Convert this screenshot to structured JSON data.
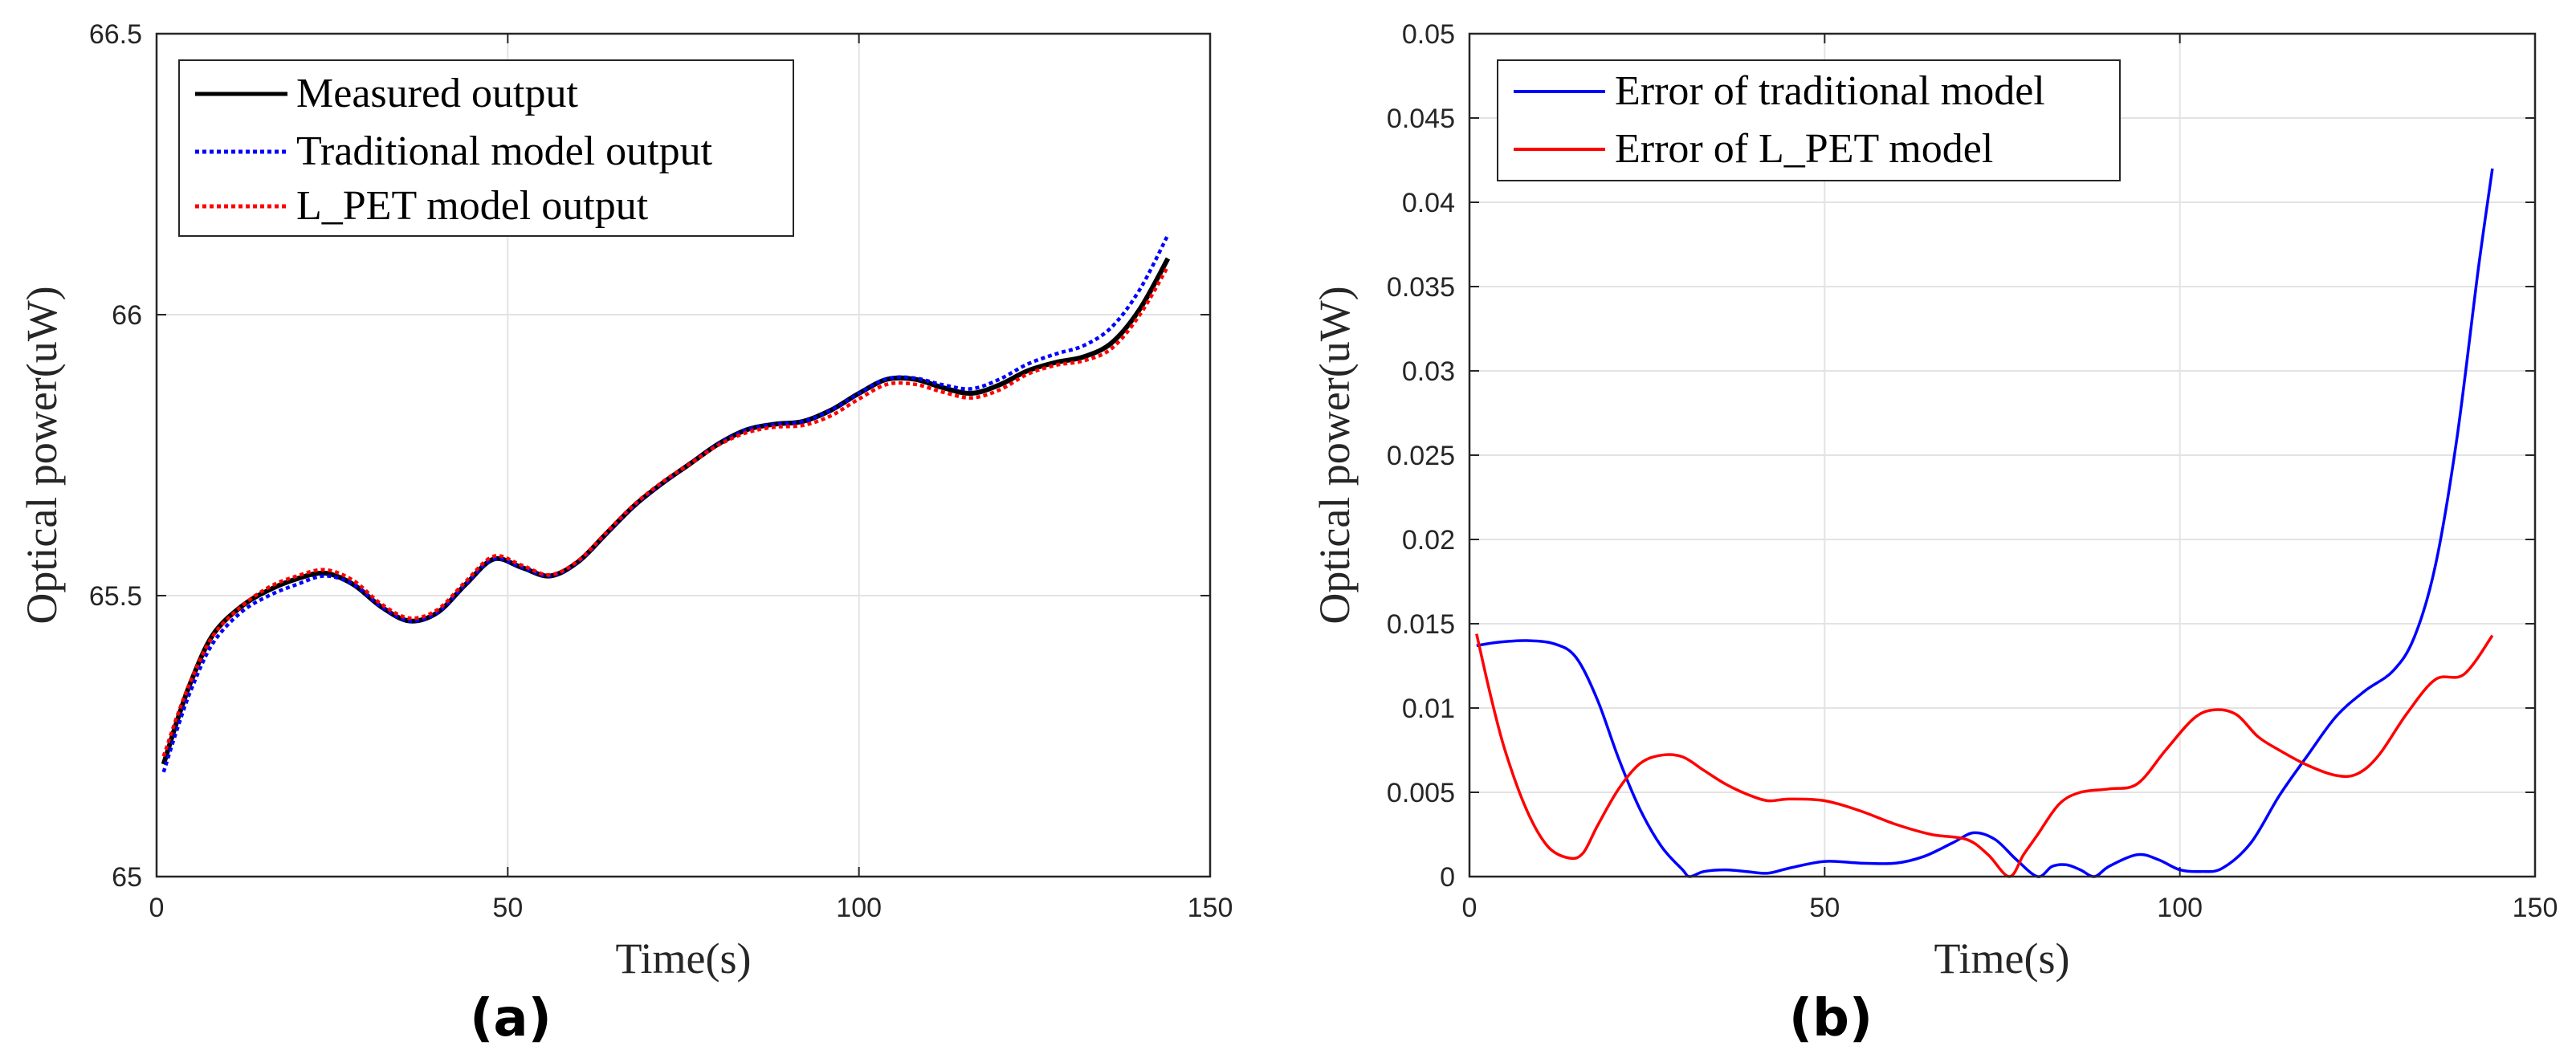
{
  "chart_data": [
    {
      "id": "a",
      "type": "line",
      "panel_label": "(a)",
      "title": "",
      "xlabel": "Time(s)",
      "ylabel": "Optical power(uW)",
      "xlim": [
        0,
        150
      ],
      "ylim": [
        65,
        66.5
      ],
      "xticks": [
        0,
        50,
        100,
        150
      ],
      "yticks": [
        65,
        65.5,
        66,
        66.5
      ],
      "xtick_labels": [
        "0",
        "50",
        "100",
        "150"
      ],
      "ytick_labels": [
        "65",
        "65.5",
        "66",
        "66.5"
      ],
      "grid": true,
      "legend_position": "top-left",
      "series": [
        {
          "name": "Measured output",
          "color": "#000000",
          "style": "solid",
          "x": [
            1,
            3,
            5,
            8,
            12,
            16,
            20,
            24,
            28,
            32,
            36,
            40,
            44,
            48,
            52,
            56,
            60,
            64,
            68,
            72,
            76,
            80,
            84,
            88,
            92,
            96,
            100,
            104,
            108,
            112,
            116,
            120,
            124,
            128,
            132,
            136,
            140,
            144
          ],
          "y": [
            65.2,
            65.28,
            65.35,
            65.43,
            65.48,
            65.51,
            65.53,
            65.54,
            65.52,
            65.48,
            65.455,
            65.47,
            65.52,
            65.565,
            65.55,
            65.535,
            65.56,
            65.61,
            65.66,
            65.7,
            65.735,
            65.77,
            65.795,
            65.805,
            65.81,
            65.83,
            65.86,
            65.885,
            65.885,
            65.87,
            65.86,
            65.875,
            65.9,
            65.915,
            65.925,
            65.95,
            66.01,
            66.1
          ]
        },
        {
          "name": "Traditional model output",
          "color": "#0000ff",
          "style": "dotted",
          "x": [
            1,
            3,
            5,
            8,
            12,
            16,
            20,
            24,
            28,
            32,
            36,
            40,
            44,
            48,
            52,
            56,
            60,
            64,
            68,
            72,
            76,
            80,
            84,
            88,
            92,
            96,
            100,
            104,
            108,
            112,
            116,
            120,
            124,
            128,
            132,
            136,
            140,
            144
          ],
          "y": [
            65.186,
            65.265,
            65.335,
            65.415,
            65.47,
            65.5,
            65.52,
            65.535,
            65.52,
            65.48,
            65.455,
            65.47,
            65.52,
            65.565,
            65.55,
            65.535,
            65.56,
            65.61,
            65.66,
            65.7,
            65.735,
            65.77,
            65.795,
            65.805,
            65.81,
            65.83,
            65.86,
            65.886,
            65.887,
            65.875,
            65.868,
            65.885,
            65.912,
            65.93,
            65.945,
            65.978,
            66.045,
            66.142
          ]
        },
        {
          "name": "L_PET model output",
          "color": "#ff0000",
          "style": "dotted",
          "x": [
            1,
            3,
            5,
            8,
            12,
            16,
            20,
            24,
            28,
            32,
            36,
            40,
            44,
            48,
            52,
            56,
            60,
            64,
            68,
            72,
            76,
            80,
            84,
            88,
            92,
            96,
            100,
            104,
            108,
            112,
            116,
            120,
            124,
            128,
            132,
            136,
            140,
            144
          ],
          "y": [
            65.214,
            65.288,
            65.352,
            65.428,
            65.48,
            65.515,
            65.535,
            65.546,
            65.527,
            65.485,
            65.46,
            65.475,
            65.525,
            65.57,
            65.554,
            65.537,
            65.562,
            65.612,
            65.662,
            65.702,
            65.735,
            65.768,
            65.79,
            65.8,
            65.803,
            65.82,
            65.85,
            65.876,
            65.876,
            65.862,
            65.852,
            65.866,
            65.894,
            65.91,
            65.918,
            65.94,
            66.0,
            66.086
          ]
        }
      ]
    },
    {
      "id": "b",
      "type": "line",
      "panel_label": "(b)",
      "title": "",
      "xlabel": "Time(s)",
      "ylabel": "Optical power(uW)",
      "xlim": [
        0,
        150
      ],
      "ylim": [
        0,
        0.05
      ],
      "xticks": [
        0,
        50,
        100,
        150
      ],
      "yticks": [
        0,
        0.005,
        0.01,
        0.015,
        0.02,
        0.025,
        0.03,
        0.035,
        0.04,
        0.045,
        0.05
      ],
      "xtick_labels": [
        "0",
        "50",
        "100",
        "150"
      ],
      "ytick_labels": [
        "0",
        "0.005",
        "0.01",
        "0.015",
        "0.02",
        "0.025",
        "0.03",
        "0.035",
        "0.04",
        "0.045",
        "0.05"
      ],
      "grid": true,
      "legend_position": "top-left",
      "series": [
        {
          "name": "Error of traditional model",
          "color": "#0000ff",
          "style": "solid",
          "x": [
            1,
            4,
            8,
            12,
            15,
            18,
            21,
            24,
            27,
            30,
            31,
            33,
            36,
            39,
            42,
            45,
            50,
            55,
            60,
            64,
            68,
            71,
            74,
            77,
            80,
            82,
            84,
            86,
            88,
            90,
            94,
            97,
            100,
            103,
            106,
            110,
            114,
            118,
            122,
            126,
            130,
            133,
            136,
            139,
            142,
            144
          ],
          "y": [
            0.0137,
            0.0139,
            0.014,
            0.0138,
            0.013,
            0.0105,
            0.007,
            0.004,
            0.0018,
            0.0004,
            0.0,
            0.0003,
            0.0004,
            0.0003,
            0.0002,
            0.0005,
            0.0009,
            0.0008,
            0.0008,
            0.0012,
            0.002,
            0.0026,
            0.0022,
            0.001,
            0.0,
            0.0006,
            0.0007,
            0.0004,
            0.0,
            0.0006,
            0.0013,
            0.001,
            0.0004,
            0.0003,
            0.0005,
            0.002,
            0.0048,
            0.0072,
            0.0095,
            0.011,
            0.0122,
            0.0142,
            0.0185,
            0.026,
            0.036,
            0.042
          ]
        },
        {
          "name": "Error of L_PET model",
          "color": "#ff0000",
          "style": "solid",
          "x": [
            1,
            3,
            5,
            8,
            11,
            14,
            16,
            18,
            21,
            24,
            27,
            30,
            33,
            36,
            39,
            42,
            45,
            50,
            55,
            60,
            65,
            70,
            73,
            76,
            78,
            80,
            83,
            86,
            90,
            94,
            98,
            102,
            105,
            108,
            111,
            114,
            118,
            122,
            125,
            128,
            132,
            136,
            140,
            144
          ],
          "y": [
            0.0144,
            0.0107,
            0.0075,
            0.004,
            0.0018,
            0.0011,
            0.0014,
            0.003,
            0.0052,
            0.0067,
            0.0072,
            0.0071,
            0.0063,
            0.0055,
            0.0049,
            0.0045,
            0.0046,
            0.0045,
            0.0039,
            0.0031,
            0.0025,
            0.0022,
            0.0013,
            0.0,
            0.0013,
            0.0025,
            0.0043,
            0.005,
            0.0052,
            0.0055,
            0.0075,
            0.0094,
            0.0099,
            0.0096,
            0.0083,
            0.0075,
            0.0066,
            0.006,
            0.0061,
            0.0072,
            0.0097,
            0.0117,
            0.012,
            0.0143
          ]
        }
      ]
    }
  ]
}
